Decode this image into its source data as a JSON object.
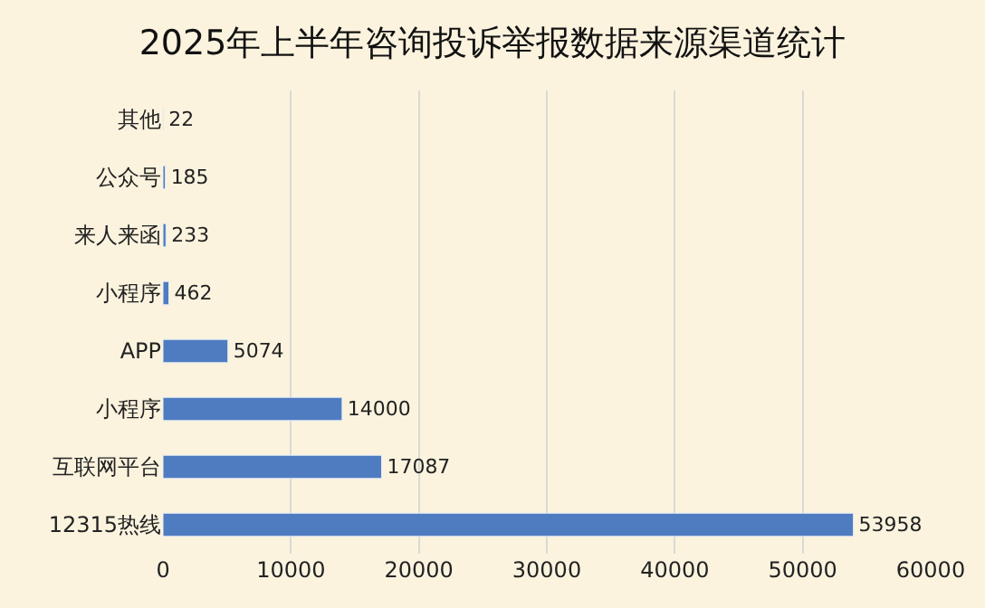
{
  "chart_data": {
    "type": "bar",
    "orientation": "horizontal",
    "title": "2025年上半年咨询投诉举报数据来源渠道统计",
    "categories": [
      "其他",
      "公众号",
      "来人来函",
      "小程序",
      "APP",
      "小程序",
      "互联网平台",
      "12315热线"
    ],
    "values": [
      22,
      185,
      233,
      462,
      5074,
      14000,
      17087,
      53958
    ],
    "color": "#4f7cc0",
    "xlim": [
      0,
      60000
    ],
    "xticks": [
      0,
      10000,
      20000,
      30000,
      40000,
      50000,
      60000
    ],
    "grid": "x",
    "data_labels": true
  }
}
